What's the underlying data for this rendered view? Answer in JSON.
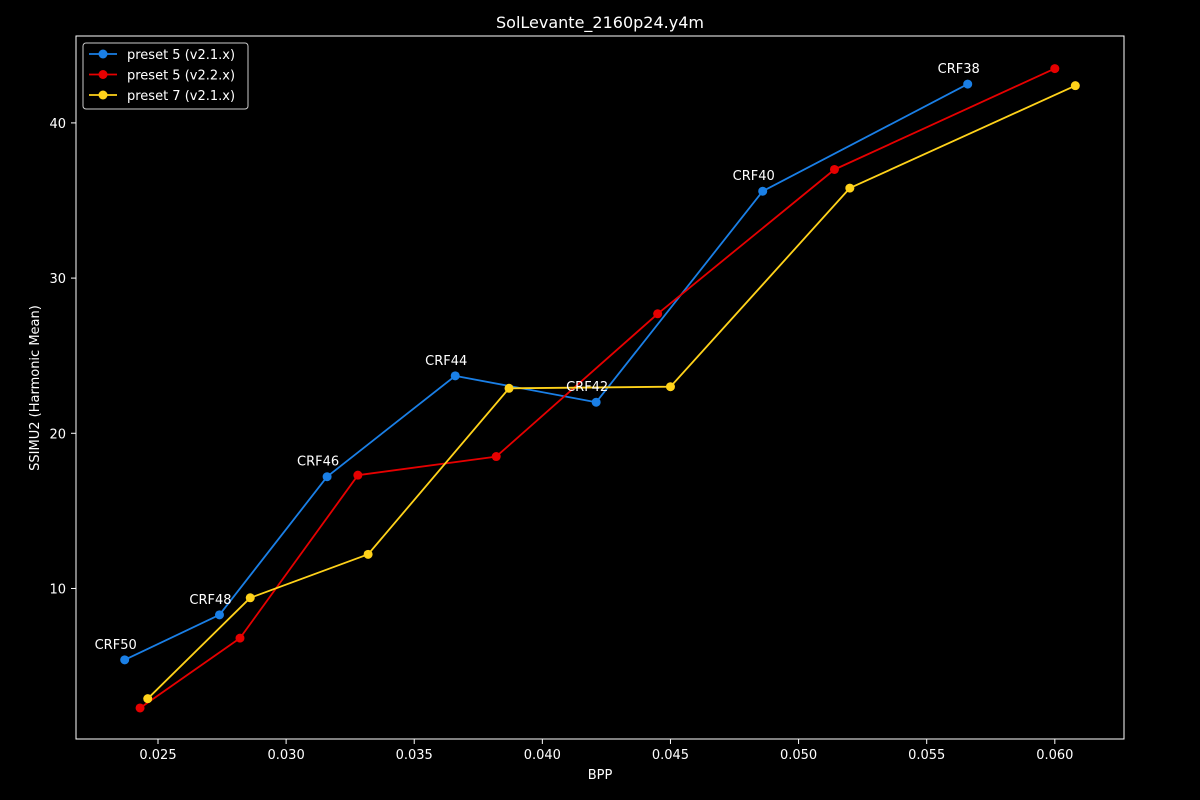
{
  "chart_data": {
    "type": "line",
    "title": "SolLevante_2160p24.y4m",
    "xlabel": "BPP",
    "ylabel": "SSIMU2 (Harmonic Mean)",
    "xlim": [
      0.0218,
      0.0627
    ],
    "ylim": [
      0.3,
      45.6
    ],
    "xticks": [
      0.025,
      0.03,
      0.035,
      0.04,
      0.045,
      0.05,
      0.055,
      0.06
    ],
    "xtick_labels": [
      "0.025",
      "0.030",
      "0.035",
      "0.040",
      "0.045",
      "0.050",
      "0.055",
      "0.060"
    ],
    "yticks": [
      10,
      20,
      30,
      40
    ],
    "ytick_labels": [
      "10",
      "20",
      "30",
      "40"
    ],
    "grid": false,
    "legend_position": "top-left",
    "series": [
      {
        "name": "preset 5 (v2.1.x)",
        "color": "#1a7fe6",
        "x": [
          0.0237,
          0.0274,
          0.0316,
          0.0366,
          0.0421,
          0.0486,
          0.0566
        ],
        "y": [
          5.4,
          8.3,
          17.2,
          23.7,
          22.0,
          35.6,
          42.5
        ]
      },
      {
        "name": "preset 5 (v2.2.x)",
        "color": "#e60000",
        "x": [
          0.0243,
          0.0282,
          0.0328,
          0.0382,
          0.0445,
          0.0514,
          0.06
        ],
        "y": [
          2.3,
          6.8,
          17.3,
          18.5,
          27.7,
          37.0,
          43.5
        ]
      },
      {
        "name": "preset 7 (v2.1.x)",
        "color": "#ffd21a",
        "x": [
          0.0246,
          0.0286,
          0.0332,
          0.0387,
          0.045,
          0.052,
          0.0608
        ],
        "y": [
          2.9,
          9.4,
          12.2,
          22.9,
          23.0,
          35.8,
          42.4
        ]
      }
    ],
    "annotations": [
      {
        "text": "CRF50",
        "x": 0.0237,
        "y": 5.4
      },
      {
        "text": "CRF48",
        "x": 0.0274,
        "y": 8.3
      },
      {
        "text": "CRF46",
        "x": 0.0316,
        "y": 17.2
      },
      {
        "text": "CRF44",
        "x": 0.0366,
        "y": 23.7
      },
      {
        "text": "CRF42",
        "x": 0.0421,
        "y": 22.0
      },
      {
        "text": "CRF40",
        "x": 0.0486,
        "y": 35.6
      },
      {
        "text": "CRF38",
        "x": 0.0566,
        "y": 42.5
      }
    ]
  }
}
